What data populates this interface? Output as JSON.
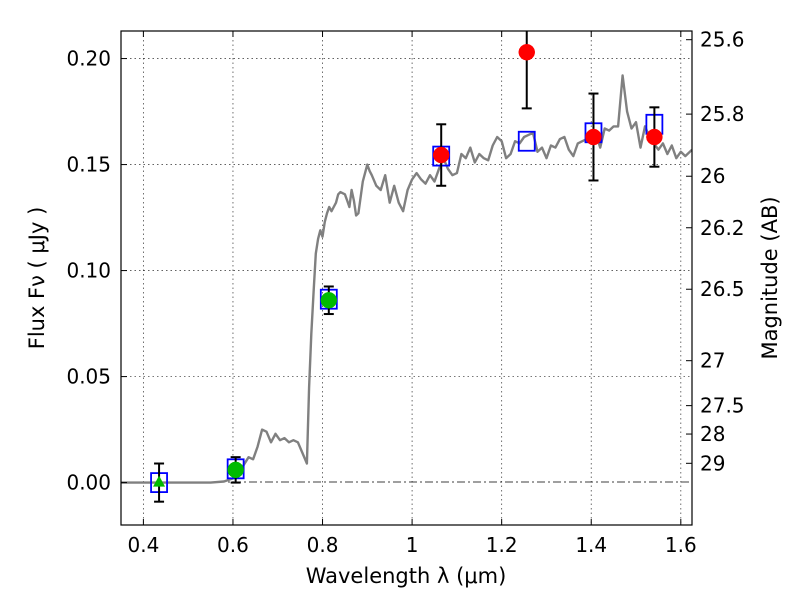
{
  "chart_data": {
    "type": "scatter",
    "title": "",
    "xlabel": "Wavelength  λ (μm)",
    "ylabel": "Flux  Fν  ( μJy )",
    "y2label": "Magnitude (AB)",
    "xlim": [
      0.35,
      1.625
    ],
    "ylim": [
      -0.02,
      0.213
    ],
    "grid": true,
    "x_ticks": [
      0.4,
      0.6,
      0.8,
      1.0,
      1.2,
      1.4,
      1.6
    ],
    "x_tick_labels": [
      "0.4",
      "0.6",
      "0.8",
      "1",
      "1.2",
      "1.4",
      "1.6"
    ],
    "y_ticks": [
      0.0,
      0.05,
      0.1,
      0.15,
      0.2
    ],
    "y_tick_labels": [
      "0.00",
      "0.05",
      "0.10",
      "0.15",
      "0.20"
    ],
    "magnitude_ticks": [
      {
        "label": "25.6",
        "flux": 0.2089
      },
      {
        "label": "25.8",
        "flux": 0.1738
      },
      {
        "label": "26",
        "flux": 0.1445
      },
      {
        "label": "26.2",
        "flux": 0.1202
      },
      {
        "label": "26.5",
        "flux": 0.0912
      },
      {
        "label": "27",
        "flux": 0.0575
      },
      {
        "label": "27.5",
        "flux": 0.0363
      },
      {
        "label": "28",
        "flux": 0.0229
      },
      {
        "label": "29",
        "flux": 0.0091
      }
    ],
    "series": [
      {
        "type": "line",
        "color": "#808080",
        "x": [
          0.35,
          0.4,
          0.45,
          0.5,
          0.55,
          0.58,
          0.6,
          0.62,
          0.635,
          0.645,
          0.655,
          0.665,
          0.675,
          0.685,
          0.695,
          0.705,
          0.715,
          0.725,
          0.735,
          0.745,
          0.755,
          0.765,
          0.77,
          0.775,
          0.78,
          0.785,
          0.79,
          0.795,
          0.8,
          0.805,
          0.81,
          0.815,
          0.82,
          0.825,
          0.83,
          0.835,
          0.84,
          0.85,
          0.855,
          0.86,
          0.865,
          0.87,
          0.875,
          0.88,
          0.89,
          0.9,
          0.905,
          0.91,
          0.92,
          0.93,
          0.94,
          0.95,
          0.96,
          0.97,
          0.98,
          0.99,
          1.0,
          1.01,
          1.02,
          1.03,
          1.04,
          1.05,
          1.06,
          1.07,
          1.08,
          1.09,
          1.1,
          1.11,
          1.12,
          1.13,
          1.14,
          1.15,
          1.16,
          1.17,
          1.18,
          1.19,
          1.2,
          1.21,
          1.22,
          1.23,
          1.24,
          1.25,
          1.26,
          1.27,
          1.28,
          1.29,
          1.3,
          1.31,
          1.32,
          1.33,
          1.34,
          1.35,
          1.36,
          1.37,
          1.38,
          1.39,
          1.4,
          1.41,
          1.42,
          1.43,
          1.44,
          1.45,
          1.46,
          1.47,
          1.48,
          1.49,
          1.5,
          1.51,
          1.52,
          1.53,
          1.54,
          1.55,
          1.56,
          1.57,
          1.58,
          1.59,
          1.6,
          1.61,
          1.625
        ],
        "y": [
          0.0,
          0.0,
          0.0,
          0.0,
          0.0,
          0.0005,
          0.002,
          0.007,
          0.012,
          0.011,
          0.017,
          0.025,
          0.024,
          0.019,
          0.023,
          0.02,
          0.021,
          0.019,
          0.02,
          0.019,
          0.014,
          0.009,
          0.045,
          0.07,
          0.09,
          0.108,
          0.115,
          0.119,
          0.116,
          0.123,
          0.127,
          0.13,
          0.128,
          0.13,
          0.132,
          0.136,
          0.137,
          0.136,
          0.133,
          0.13,
          0.138,
          0.133,
          0.126,
          0.127,
          0.142,
          0.15,
          0.147,
          0.145,
          0.14,
          0.138,
          0.145,
          0.132,
          0.14,
          0.132,
          0.128,
          0.138,
          0.143,
          0.146,
          0.143,
          0.141,
          0.145,
          0.142,
          0.148,
          0.153,
          0.148,
          0.145,
          0.146,
          0.155,
          0.153,
          0.158,
          0.151,
          0.155,
          0.153,
          0.152,
          0.159,
          0.163,
          0.161,
          0.153,
          0.155,
          0.161,
          0.16,
          0.163,
          0.164,
          0.165,
          0.156,
          0.158,
          0.153,
          0.159,
          0.158,
          0.162,
          0.163,
          0.157,
          0.154,
          0.16,
          0.161,
          0.162,
          0.16,
          0.165,
          0.158,
          0.167,
          0.166,
          0.168,
          0.168,
          0.192,
          0.175,
          0.167,
          0.17,
          0.158,
          0.168,
          0.163,
          0.16,
          0.157,
          0.16,
          0.155,
          0.159,
          0.153,
          0.156,
          0.154,
          0.157
        ]
      },
      {
        "type": "scatter",
        "marker": "square-open",
        "color": "#0000ff",
        "x": [
          0.435,
          0.606,
          0.814,
          1.065,
          1.256,
          1.405,
          1.541
        ],
        "y": [
          0.0,
          0.0065,
          0.0865,
          0.154,
          0.161,
          0.165,
          0.169
        ]
      },
      {
        "type": "scatter",
        "marker": "circle",
        "color": "#ff0000",
        "x": [
          1.065,
          1.256,
          1.405,
          1.541
        ],
        "y": [
          0.1545,
          0.203,
          0.163,
          0.163
        ],
        "yerr": [
          0.0145,
          0.0265,
          0.0205,
          0.014
        ]
      },
      {
        "type": "scatter",
        "marker": "circle",
        "color": "#00bb00",
        "x": [
          0.606,
          0.814
        ],
        "y": [
          0.006,
          0.086
        ],
        "yerr": [
          0.006,
          0.0065
        ]
      },
      {
        "type": "scatter",
        "marker": "triangle",
        "color": "#00bb00",
        "x": [
          0.435
        ],
        "y": [
          0.0
        ],
        "yerr": [
          0.009
        ]
      }
    ]
  }
}
